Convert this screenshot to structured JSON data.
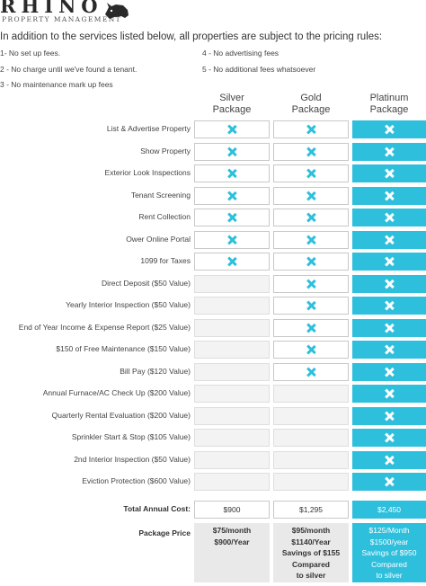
{
  "brand": {
    "name": "RHINO",
    "tagline": "PROPERTY MANAGEMENT"
  },
  "intro": "In addition to the services listed below, all properties are subject to the pricing rules:",
  "rules": [
    "1- No set up fees.",
    "4 - No advertising fees",
    "2 - No charge until we've found a tenant.",
    "5 - No additional fees whatsoever",
    "3 - No maintenance mark up fees"
  ],
  "packages": [
    {
      "line1": "Silver",
      "line2": "Package"
    },
    {
      "line1": "Gold",
      "line2": "Package"
    },
    {
      "line1": "Platinum",
      "line2": "Package"
    }
  ],
  "features": [
    {
      "label": "List & Advertise Property",
      "silver": true,
      "gold": true,
      "platinum": true
    },
    {
      "label": "Show Property",
      "silver": true,
      "gold": true,
      "platinum": true
    },
    {
      "label": "Exterior Look Inspections",
      "silver": true,
      "gold": true,
      "platinum": true
    },
    {
      "label": "Tenant Screening",
      "silver": true,
      "gold": true,
      "platinum": true
    },
    {
      "label": "Rent Collection",
      "silver": true,
      "gold": true,
      "platinum": true
    },
    {
      "label": "Ower Online Portal",
      "silver": true,
      "gold": true,
      "platinum": true
    },
    {
      "label": "1099 for Taxes",
      "silver": true,
      "gold": true,
      "platinum": true
    },
    {
      "label": "Direct Deposit ($50 Value)",
      "silver": false,
      "gold": true,
      "platinum": true
    },
    {
      "label": "Yearly Interior Inspection ($50 Value)",
      "silver": false,
      "gold": true,
      "platinum": true
    },
    {
      "label": "End of Year Income & Expense Report ($25 Value)",
      "silver": false,
      "gold": true,
      "platinum": true
    },
    {
      "label": "$150 of Free Maintenance ($150 Value)",
      "silver": false,
      "gold": true,
      "platinum": true
    },
    {
      "label": "Bill Pay ($120 Value)",
      "silver": false,
      "gold": true,
      "platinum": true
    },
    {
      "label": "Annual Furnace/AC Check Up ($200 Value)",
      "silver": false,
      "gold": false,
      "platinum": true
    },
    {
      "label": "Quarterly Rental Evaluation ($200 Value)",
      "silver": false,
      "gold": false,
      "platinum": true
    },
    {
      "label": "Sprinkler Start & Stop ($105 Value)",
      "silver": false,
      "gold": false,
      "platinum": true
    },
    {
      "label": "2nd Interior Inspection ($50 Value)",
      "silver": false,
      "gold": false,
      "platinum": true
    },
    {
      "label": "Eviction Protection ($600 Value)",
      "silver": false,
      "gold": false,
      "platinum": true
    }
  ],
  "total": {
    "label": "Total Annual Cost:",
    "silver": "$900",
    "gold": "$1,295",
    "platinum": "$2,450"
  },
  "price": {
    "label": "Package Price",
    "silver": [
      "$75/month",
      "$900/Year"
    ],
    "gold": [
      "$95/month",
      "$1140/Year",
      "Savings of $155",
      "Compared",
      "to silver"
    ],
    "platinum": [
      "$125/Month",
      "$1500/year",
      "Savings of $950",
      "Compared",
      "to silver"
    ]
  },
  "colors": {
    "accent": "#2ebfdc",
    "cell_border": "#c8c8c8",
    "empty_cell": "#f3f3f3",
    "price_bg": "#e9e9e9"
  },
  "icons": {
    "included": "x-mark-icon",
    "logo": "rhino-icon"
  }
}
